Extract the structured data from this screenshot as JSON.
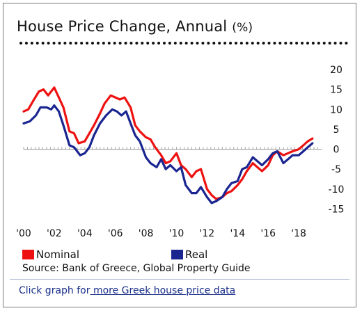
{
  "widget": {
    "title": "House Price Change, Annual",
    "title_unit": "(%)",
    "source": "Source: Bank of Greece, Global Property Guide",
    "link_prefix": "Click graph for",
    "link_text": " more Greek house price data"
  },
  "chart_data": {
    "type": "line",
    "title": "House Price Change, Annual (%)",
    "xlabel": "",
    "ylabel": "",
    "xlim": [
      2000,
      2019.5
    ],
    "ylim": [
      -17,
      20
    ],
    "grid": false,
    "legend_position": "bottom-left",
    "x_ticks": [
      {
        "value": 2000,
        "label": "'00"
      },
      {
        "value": 2002,
        "label": "'02"
      },
      {
        "value": 2004,
        "label": "'04"
      },
      {
        "value": 2006,
        "label": "'06"
      },
      {
        "value": 2008,
        "label": "'08"
      },
      {
        "value": 2010,
        "label": "'10"
      },
      {
        "value": 2012,
        "label": "'12"
      },
      {
        "value": 2014,
        "label": "'14"
      },
      {
        "value": 2016,
        "label": "'16"
      },
      {
        "value": 2018,
        "label": "'18"
      }
    ],
    "y_ticks": [
      20,
      15,
      10,
      5,
      0,
      -5,
      -10,
      -15
    ],
    "series": [
      {
        "name": "Nominal",
        "color": "#ee1111",
        "points": [
          [
            2000.0,
            9.5
          ],
          [
            2000.3,
            10.0
          ],
          [
            2000.6,
            12.0
          ],
          [
            2001.0,
            14.5
          ],
          [
            2001.3,
            15.0
          ],
          [
            2001.6,
            13.5
          ],
          [
            2002.0,
            15.5
          ],
          [
            2002.3,
            13.0
          ],
          [
            2002.6,
            10.5
          ],
          [
            2003.0,
            4.5
          ],
          [
            2003.3,
            4.0
          ],
          [
            2003.6,
            1.5
          ],
          [
            2004.0,
            2.0
          ],
          [
            2004.3,
            4.0
          ],
          [
            2004.6,
            6.0
          ],
          [
            2005.0,
            9.0
          ],
          [
            2005.3,
            11.5
          ],
          [
            2005.7,
            13.5
          ],
          [
            2006.0,
            13.0
          ],
          [
            2006.3,
            12.5
          ],
          [
            2006.6,
            13.0
          ],
          [
            2007.0,
            10.5
          ],
          [
            2007.3,
            6.0
          ],
          [
            2007.6,
            4.5
          ],
          [
            2008.0,
            3.0
          ],
          [
            2008.3,
            2.5
          ],
          [
            2008.6,
            0.5
          ],
          [
            2009.0,
            -1.5
          ],
          [
            2009.3,
            -3.5
          ],
          [
            2009.6,
            -3.0
          ],
          [
            2010.0,
            -1.0
          ],
          [
            2010.3,
            -4.0
          ],
          [
            2010.6,
            -5.0
          ],
          [
            2011.0,
            -7.0
          ],
          [
            2011.3,
            -5.5
          ],
          [
            2011.6,
            -5.0
          ],
          [
            2012.0,
            -10.0
          ],
          [
            2012.3,
            -11.5
          ],
          [
            2012.6,
            -12.5
          ],
          [
            2013.0,
            -12.0
          ],
          [
            2013.3,
            -11.0
          ],
          [
            2013.6,
            -10.5
          ],
          [
            2014.0,
            -9.0
          ],
          [
            2014.3,
            -7.5
          ],
          [
            2014.6,
            -5.5
          ],
          [
            2015.0,
            -3.5
          ],
          [
            2015.3,
            -4.5
          ],
          [
            2015.6,
            -5.5
          ],
          [
            2016.0,
            -4.0
          ],
          [
            2016.3,
            -1.5
          ],
          [
            2016.6,
            -0.5
          ],
          [
            2017.0,
            -1.5
          ],
          [
            2017.3,
            -1.0
          ],
          [
            2017.6,
            -0.5
          ],
          [
            2018.0,
            0.0
          ],
          [
            2018.3,
            1.0
          ],
          [
            2018.6,
            2.0
          ],
          [
            2018.9,
            2.7
          ]
        ]
      },
      {
        "name": "Real",
        "color": "#1a2590",
        "points": [
          [
            2000.0,
            6.5
          ],
          [
            2000.4,
            7.0
          ],
          [
            2000.8,
            8.5
          ],
          [
            2001.1,
            10.5
          ],
          [
            2001.5,
            10.5
          ],
          [
            2001.8,
            10.0
          ],
          [
            2002.0,
            11.0
          ],
          [
            2002.3,
            9.5
          ],
          [
            2002.6,
            6.0
          ],
          [
            2003.0,
            1.0
          ],
          [
            2003.3,
            0.5
          ],
          [
            2003.7,
            -1.5
          ],
          [
            2004.0,
            -1.0
          ],
          [
            2004.3,
            0.5
          ],
          [
            2004.6,
            3.5
          ],
          [
            2005.0,
            6.5
          ],
          [
            2005.4,
            8.5
          ],
          [
            2005.8,
            10.0
          ],
          [
            2006.1,
            9.5
          ],
          [
            2006.4,
            8.5
          ],
          [
            2006.7,
            9.5
          ],
          [
            2007.0,
            6.5
          ],
          [
            2007.3,
            3.5
          ],
          [
            2007.6,
            2.0
          ],
          [
            2008.0,
            -2.0
          ],
          [
            2008.3,
            -3.5
          ],
          [
            2008.7,
            -4.5
          ],
          [
            2009.0,
            -2.5
          ],
          [
            2009.3,
            -5.0
          ],
          [
            2009.6,
            -4.0
          ],
          [
            2010.0,
            -5.5
          ],
          [
            2010.3,
            -4.5
          ],
          [
            2010.6,
            -9.0
          ],
          [
            2011.0,
            -11.0
          ],
          [
            2011.3,
            -11.0
          ],
          [
            2011.6,
            -9.5
          ],
          [
            2012.0,
            -12.0
          ],
          [
            2012.3,
            -13.5
          ],
          [
            2012.6,
            -13.0
          ],
          [
            2013.0,
            -12.0
          ],
          [
            2013.3,
            -10.0
          ],
          [
            2013.6,
            -8.5
          ],
          [
            2014.0,
            -8.0
          ],
          [
            2014.3,
            -5.0
          ],
          [
            2014.6,
            -4.5
          ],
          [
            2015.0,
            -2.0
          ],
          [
            2015.3,
            -3.0
          ],
          [
            2015.6,
            -4.0
          ],
          [
            2016.0,
            -2.5
          ],
          [
            2016.3,
            -1.0
          ],
          [
            2016.6,
            -0.5
          ],
          [
            2017.0,
            -3.5
          ],
          [
            2017.3,
            -2.5
          ],
          [
            2017.6,
            -1.5
          ],
          [
            2018.0,
            -1.5
          ],
          [
            2018.3,
            -0.5
          ],
          [
            2018.6,
            0.5
          ],
          [
            2018.9,
            1.5
          ]
        ]
      }
    ]
  }
}
